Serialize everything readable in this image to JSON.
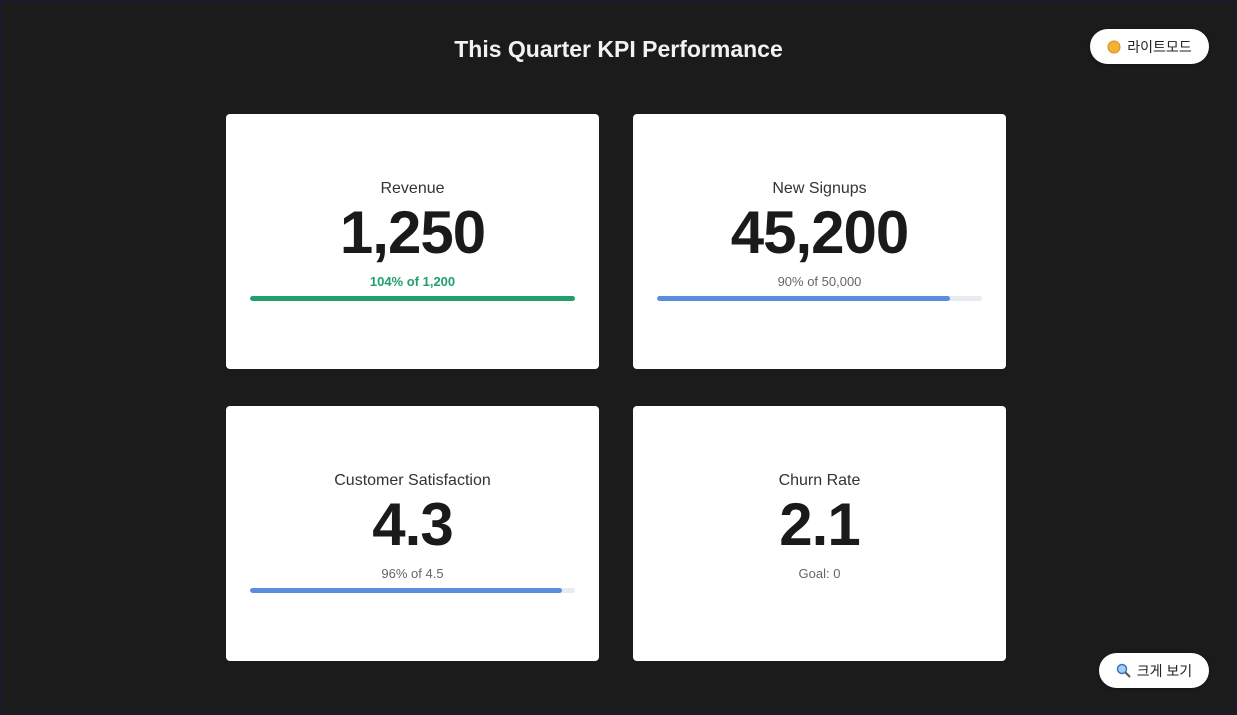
{
  "header": {
    "title": "This Quarter KPI Performance"
  },
  "buttons": {
    "theme": "라이트모드",
    "zoom": "크게 보기"
  },
  "cards": [
    {
      "label": "Revenue",
      "value": "1,250",
      "detail": "104% of 1,200",
      "progress": 104,
      "color": "#22a06b",
      "detail_color": "#22a06b"
    },
    {
      "label": "New Signups",
      "value": "45,200",
      "detail": "90% of 50,000",
      "progress": 90,
      "color": "#5b8dde",
      "detail_color": "#666666"
    },
    {
      "label": "Customer Satisfaction",
      "value": "4.3",
      "detail": "96% of 4.5",
      "progress": 96,
      "color": "#5b8dde",
      "detail_color": "#666666"
    },
    {
      "label": "Churn Rate",
      "value": "2.1",
      "detail": "Goal: 0",
      "detail_color": "#666666"
    }
  ]
}
